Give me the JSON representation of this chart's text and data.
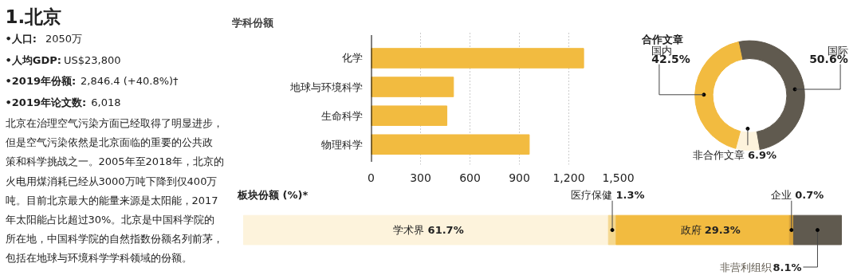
{
  "chart_data": [
    {
      "type": "other",
      "title": "1.北京",
      "annotations": [
        "•人口: 2050万",
        "•人均GDP: US$23,800",
        "•2019年份额: 2,846.4 (+40.8%)†",
        "•2019年论文数: 6,018",
        "北京在治理空气污染方面已经取得了明显进步，但是空气污染依然是北京面临的重要的公共政策和科学挑战之一。2005年至2018年，北京的火电用煤消耗已经从3000万吨下降到仅400万吨。目前北京最大的能量来源是太阳能，2017年太阳能占比超过30%。北京是中国科学院的所在地，中国科学院的自然指数份额名列前茅，包括在地球与环境科学学科领域的份额。"
      ]
    },
    {
      "type": "bar",
      "orientation": "horizontal",
      "title": "学科份额",
      "categories": [
        "化学",
        "地球与环境科学",
        "生命科学",
        "物理科学"
      ],
      "values": [
        1290,
        500,
        460,
        960
      ],
      "color": "#f2bb40",
      "xlim": [
        0,
        1500
      ],
      "xticks": [
        0,
        300,
        600,
        900,
        {
          "value": 1200,
          "label": "1,200"
        },
        {
          "value": 1500,
          "label": "1,500"
        }
      ],
      "grid": "x"
    },
    {
      "type": "donut",
      "title": "合作文章",
      "categories": [
        "国际",
        "非合作文章",
        "国内"
      ],
      "values": [
        50.6,
        6.9,
        42.5
      ],
      "colors": [
        "#605a4f",
        "#fdf3dc",
        "#f2bb40"
      ],
      "value_labels": [
        "50.6%",
        "6.9%",
        "42.5%"
      ]
    },
    {
      "type": "bar",
      "orientation": "horizontal",
      "stacked": true,
      "title": "板块份额 (%)*",
      "categories": [
        null
      ],
      "series": [
        {
          "name": "学术界",
          "color": "#fdf3dc",
          "values": [
            61.7
          ],
          "value_labels": [
            "61.7%"
          ]
        },
        {
          "name": "医疗保健",
          "color": "#f5d88f",
          "values": [
            1.3
          ],
          "value_labels": [
            "1.3%"
          ]
        },
        {
          "name": "政府",
          "color": "#f2bb40",
          "values": [
            29.3
          ],
          "value_labels": [
            "29.3%"
          ]
        },
        {
          "name": "企业",
          "color": "#d9a33a",
          "values": [
            0.7
          ],
          "value_labels": [
            "0.7%"
          ]
        },
        {
          "name": "非营利组织",
          "color": "#605a4f",
          "values": [
            8.1
          ],
          "value_labels": [
            "8.1%"
          ]
        }
      ]
    }
  ]
}
